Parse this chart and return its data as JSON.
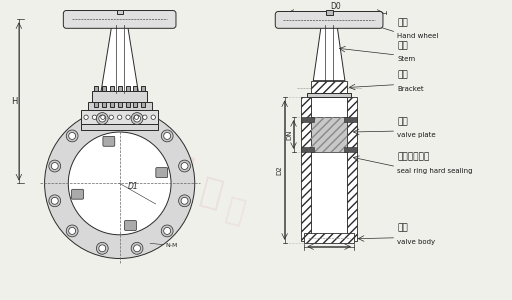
{
  "bg_color": "#f0f0eb",
  "line_color": "#2a2a2a",
  "label_color": "#1a1a1a",
  "watermark_color": "#c8888888",
  "labels": {
    "handwheel_cn": "手輪",
    "handwheel_en": "Hand wheel",
    "stem_cn": "閘杆",
    "stem_en": "Stem",
    "bracket_cn": "支架",
    "bracket_en": "Bracket",
    "valve_plate_cn": "閘板",
    "valve_plate_en": "valve plate",
    "seal_ring_cn": "密封圈硬密封",
    "seal_ring_en": "seal ring hard sealing",
    "valve_body_cn": "閘體",
    "valve_body_en": "valve body"
  },
  "dim_labels": {
    "D0": "D0",
    "D1": "D1",
    "D2": "D2",
    "DN": "DN",
    "H": "H",
    "NM": "N-M"
  }
}
